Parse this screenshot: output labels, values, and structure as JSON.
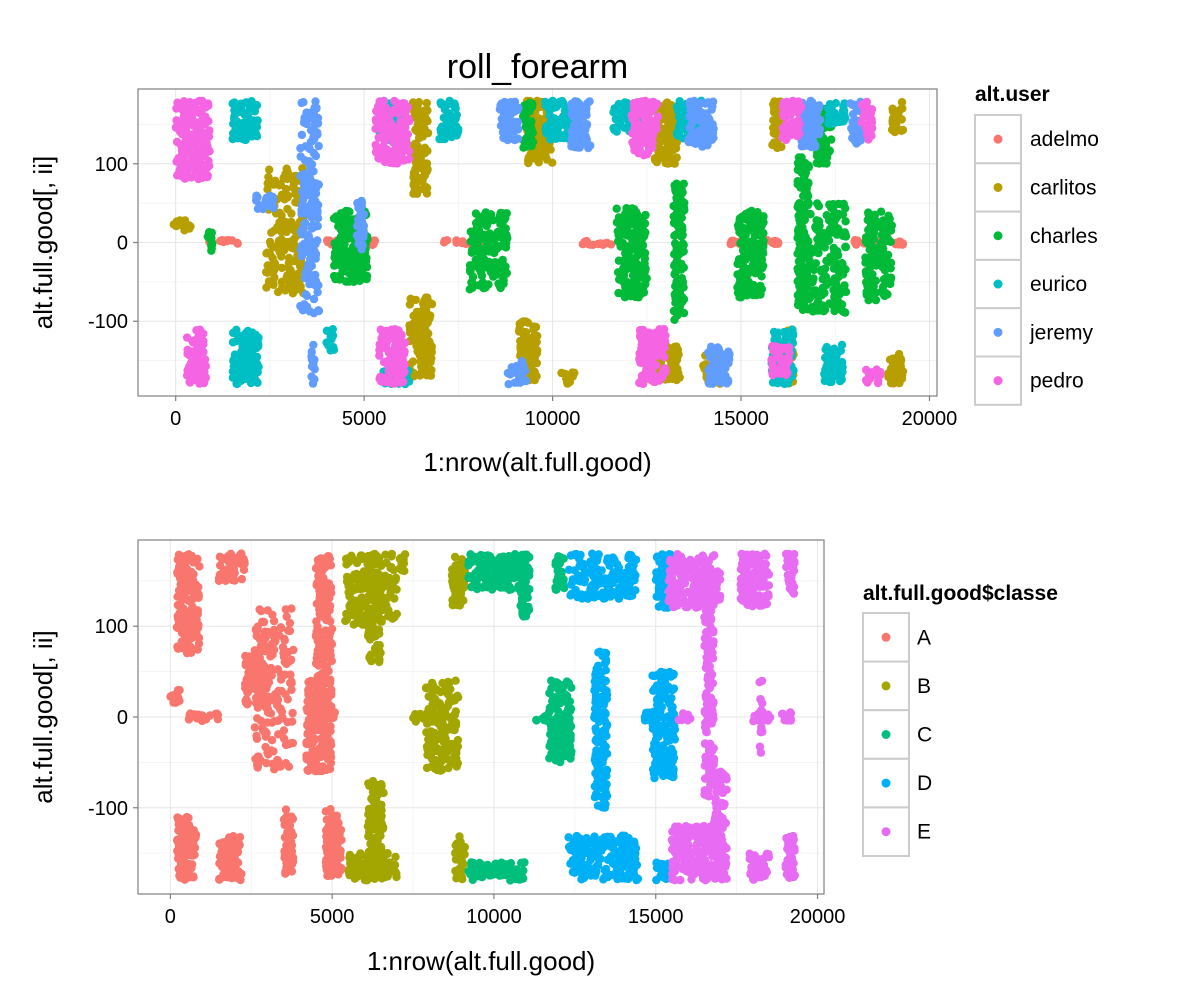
{
  "chart_data": [
    {
      "type": "scatter",
      "title": "roll_forearm",
      "xlabel": "1:nrow(alt.full.good)",
      "ylabel": "alt.full.good[, ii]",
      "xlim": [
        -1000,
        20200
      ],
      "ylim": [
        -195,
        195
      ],
      "x_ticks": [
        0,
        5000,
        10000,
        15000,
        20000
      ],
      "y_ticks": [
        -100,
        0,
        100
      ],
      "grid": true,
      "legend": {
        "title": "alt.user",
        "placement": "right",
        "entries": [
          "adelmo",
          "carlitos",
          "charles",
          "eurico",
          "jeremy",
          "pedro"
        ]
      },
      "series": [
        {
          "name": "adelmo",
          "color": "#F8766D",
          "clusters": [
            [
              700,
              1700,
              -3,
              3
            ],
            [
              4000,
              4300,
              -3,
              3
            ],
            [
              5000,
              5300,
              -3,
              3
            ],
            [
              7000,
              8400,
              -3,
              3
            ],
            [
              10800,
              11600,
              -3,
              3
            ],
            [
              14600,
              15000,
              -3,
              3
            ],
            [
              15600,
              16000,
              -3,
              3
            ],
            [
              18000,
              18800,
              -3,
              3
            ],
            [
              19100,
              19300,
              -3,
              3
            ]
          ]
        },
        {
          "name": "carlitos",
          "color": "#B79F00",
          "clusters": [
            [
              -50,
              400,
              15,
              30
            ],
            [
              2400,
              3400,
              -65,
              95
            ],
            [
              6200,
              6800,
              -170,
              -70
            ],
            [
              6300,
              6700,
              60,
              180
            ],
            [
              9300,
              10000,
              100,
              180
            ],
            [
              9100,
              9600,
              -175,
              -100
            ],
            [
              10200,
              10600,
              -180,
              -165
            ],
            [
              12700,
              13300,
              100,
              180
            ],
            [
              12600,
              13400,
              -175,
              -130
            ],
            [
              14000,
              14500,
              -180,
              -140
            ],
            [
              15800,
              16100,
              120,
              180
            ],
            [
              16100,
              16400,
              -180,
              -110
            ],
            [
              19000,
              19300,
              140,
              180
            ],
            [
              18900,
              19300,
              -180,
              -140
            ]
          ]
        },
        {
          "name": "charles",
          "color": "#00BA38",
          "clusters": [
            [
              800,
              1000,
              -15,
              15
            ],
            [
              4200,
              5100,
              -50,
              40
            ],
            [
              7800,
              8800,
              -60,
              40
            ],
            [
              11700,
              12500,
              -70,
              45
            ],
            [
              13200,
              13500,
              -100,
              75
            ],
            [
              14900,
              15600,
              -70,
              40
            ],
            [
              16500,
              16800,
              -90,
              110
            ],
            [
              16800,
              17800,
              -90,
              50
            ],
            [
              18300,
              18600,
              -80,
              40
            ],
            [
              18700,
              19000,
              -70,
              40
            ],
            [
              9200,
              9500,
              120,
              180
            ],
            [
              17000,
              17400,
              100,
              170
            ]
          ]
        },
        {
          "name": "eurico",
          "color": "#00BFC4",
          "clusters": [
            [
              1500,
              2200,
              130,
              180
            ],
            [
              1500,
              2200,
              -180,
              -110
            ],
            [
              5400,
              6000,
              130,
              180
            ],
            [
              5500,
              6200,
              -180,
              -160
            ],
            [
              7000,
              7500,
              130,
              180
            ],
            [
              9800,
              10700,
              130,
              180
            ],
            [
              11600,
              12400,
              140,
              180
            ],
            [
              13300,
              14000,
              130,
              180
            ],
            [
              15800,
              16400,
              -180,
              -110
            ],
            [
              17300,
              17800,
              150,
              180
            ],
            [
              17200,
              17700,
              -180,
              -130
            ],
            [
              4000,
              4200,
              -140,
              -110
            ]
          ]
        },
        {
          "name": "jeremy",
          "color": "#619CFF",
          "clusters": [
            [
              2100,
              2600,
              40,
              60
            ],
            [
              3300,
              3800,
              -90,
              180
            ],
            [
              3600,
              3700,
              -180,
              -130
            ],
            [
              4800,
              5000,
              -10,
              55
            ],
            [
              8600,
              9100,
              130,
              180
            ],
            [
              8800,
              9300,
              -180,
              -150
            ],
            [
              10500,
              11000,
              120,
              180
            ],
            [
              13600,
              14300,
              120,
              180
            ],
            [
              14100,
              14700,
              -180,
              -130
            ],
            [
              16600,
              17100,
              120,
              180
            ],
            [
              17900,
              18200,
              120,
              180
            ]
          ]
        },
        {
          "name": "pedro",
          "color": "#F564E3",
          "clusters": [
            [
              0,
              900,
              80,
              180
            ],
            [
              300,
              800,
              -180,
              -110
            ],
            [
              5300,
              6200,
              100,
              180
            ],
            [
              5400,
              6100,
              -180,
              -110
            ],
            [
              12100,
              12800,
              110,
              180
            ],
            [
              12300,
              13000,
              -180,
              -110
            ],
            [
              15800,
              16300,
              -170,
              -130
            ],
            [
              16100,
              16600,
              130,
              180
            ],
            [
              18200,
              18500,
              130,
              180
            ],
            [
              18300,
              18700,
              -180,
              -160
            ]
          ]
        }
      ]
    },
    {
      "type": "scatter",
      "title": "",
      "xlabel": "1:nrow(alt.full.good)",
      "ylabel": "alt.full.good[, ii]",
      "xlim": [
        -1000,
        20200
      ],
      "ylim": [
        -195,
        195
      ],
      "x_ticks": [
        0,
        5000,
        10000,
        15000,
        20000
      ],
      "y_ticks": [
        -100,
        0,
        100
      ],
      "grid": true,
      "legend": {
        "title": "alt.full.good$classe",
        "placement": "right",
        "entries": [
          "A",
          "B",
          "C",
          "D",
          "E"
        ]
      },
      "series": [
        {
          "name": "A",
          "color": "#F8766D",
          "clusters": [
            [
              200,
              900,
              70,
              180
            ],
            [
              1500,
              2300,
              150,
              180
            ],
            [
              200,
              800,
              -180,
              -110
            ],
            [
              1500,
              2200,
              -180,
              -130
            ],
            [
              500,
              1500,
              -5,
              5
            ],
            [
              2300,
              3000,
              10,
              70
            ],
            [
              2600,
              3800,
              -60,
              120
            ],
            [
              3500,
              3800,
              -175,
              -100
            ],
            [
              4200,
              5000,
              -60,
              40
            ],
            [
              4500,
              5000,
              40,
              180
            ],
            [
              4800,
              5300,
              -175,
              -100
            ],
            [
              0,
              300,
              15,
              30
            ],
            [
              4700,
              5200,
              -5,
              5
            ]
          ]
        },
        {
          "name": "B",
          "color": "#A3A500",
          "clusters": [
            [
              5400,
              7000,
              100,
              180
            ],
            [
              5500,
              7000,
              -180,
              -150
            ],
            [
              6100,
              6500,
              60,
              180
            ],
            [
              6100,
              6600,
              -170,
              -70
            ],
            [
              7000,
              7300,
              160,
              180
            ],
            [
              7400,
              8000,
              -5,
              5
            ],
            [
              7900,
              8900,
              -60,
              40
            ],
            [
              8700,
              9100,
              120,
              180
            ],
            [
              8800,
              9100,
              -180,
              -130
            ]
          ]
        },
        {
          "name": "C",
          "color": "#00BF7D",
          "clusters": [
            [
              9200,
              11000,
              140,
              180
            ],
            [
              9200,
              11000,
              -180,
              -160
            ],
            [
              10800,
              11100,
              110,
              180
            ],
            [
              11300,
              11800,
              -5,
              5
            ],
            [
              11700,
              12400,
              -50,
              40
            ],
            [
              11900,
              12200,
              140,
              180
            ]
          ]
        },
        {
          "name": "D",
          "color": "#00B0F6",
          "clusters": [
            [
              12300,
              14400,
              130,
              180
            ],
            [
              12300,
              14400,
              -180,
              -130
            ],
            [
              13100,
              13500,
              -100,
              75
            ],
            [
              14100,
              14500,
              -180,
              -140
            ],
            [
              14600,
              14900,
              -5,
              5
            ],
            [
              14900,
              15600,
              -70,
              50
            ],
            [
              15000,
              15500,
              120,
              180
            ],
            [
              15000,
              15500,
              -180,
              -160
            ]
          ]
        },
        {
          "name": "E",
          "color": "#E76BF3",
          "clusters": [
            [
              15400,
              17000,
              120,
              180
            ],
            [
              15500,
              16800,
              -180,
              -120
            ],
            [
              15700,
              16100,
              -5,
              5
            ],
            [
              16500,
              16800,
              -90,
              170
            ],
            [
              16800,
              17200,
              -180,
              -60
            ],
            [
              17600,
              18500,
              120,
              180
            ],
            [
              17900,
              18500,
              -180,
              -150
            ],
            [
              18000,
              18600,
              -5,
              5
            ],
            [
              18200,
              18300,
              -40,
              40
            ],
            [
              19000,
              19300,
              130,
              180
            ],
            [
              19000,
              19300,
              -180,
              -130
            ],
            [
              18900,
              19200,
              -5,
              5
            ]
          ]
        }
      ]
    }
  ]
}
